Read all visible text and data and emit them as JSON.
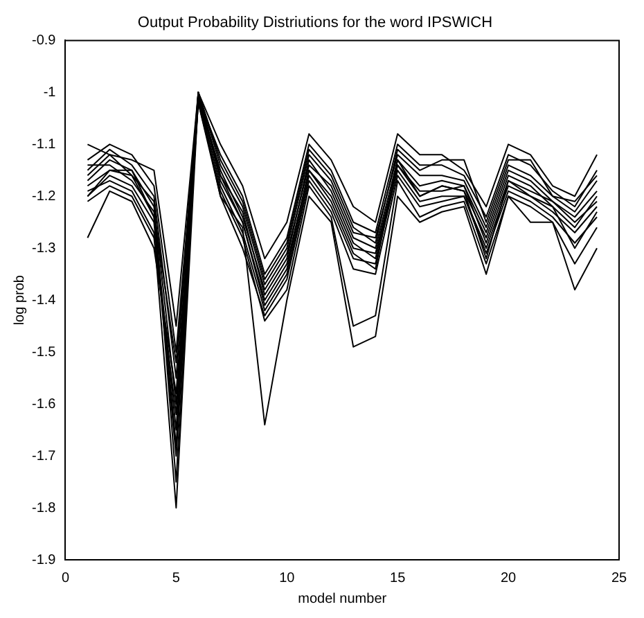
{
  "chart_data": {
    "type": "line",
    "title": "Output Probability Distriutions for the word IPSWICH",
    "xlabel": "model number",
    "ylabel": "log prob",
    "x": [
      1,
      2,
      3,
      4,
      5,
      6,
      7,
      8,
      9,
      10,
      11,
      12,
      13,
      14,
      15,
      16,
      17,
      18,
      19,
      20,
      21,
      22,
      23,
      24
    ],
    "xlim": [
      0,
      25
    ],
    "xticks": [
      0,
      5,
      10,
      15,
      20,
      25
    ],
    "ylim": [
      -1.9,
      -0.9
    ],
    "yticks": [
      -1.9,
      -1.8,
      -1.7,
      -1.6,
      -1.5,
      -1.4,
      -1.3,
      -1.2,
      -1.1,
      -1,
      -0.9
    ],
    "grid": false,
    "legend": false,
    "marker": "none",
    "line_style": "solid",
    "series": [
      {
        "color": "#000000",
        "values": [
          -1.1,
          -1.12,
          -1.13,
          -1.15,
          -1.45,
          -1.0,
          -1.1,
          -1.18,
          -1.32,
          -1.25,
          -1.08,
          -1.13,
          -1.22,
          -1.25,
          -1.08,
          -1.12,
          -1.12,
          -1.15,
          -1.22,
          -1.1,
          -1.12,
          -1.18,
          -1.2,
          -1.12
        ]
      },
      {
        "color": "#000000",
        "values": [
          -1.13,
          -1.1,
          -1.12,
          -1.18,
          -1.5,
          -1.01,
          -1.12,
          -1.2,
          -1.35,
          -1.28,
          -1.1,
          -1.15,
          -1.25,
          -1.27,
          -1.1,
          -1.14,
          -1.14,
          -1.16,
          -1.24,
          -1.12,
          -1.14,
          -1.19,
          -1.22,
          -1.15
        ]
      },
      {
        "color": "#000000",
        "values": [
          -1.15,
          -1.11,
          -1.14,
          -1.2,
          -1.55,
          -1.0,
          -1.14,
          -1.22,
          -1.37,
          -1.3,
          -1.12,
          -1.17,
          -1.27,
          -1.28,
          -1.12,
          -1.16,
          -1.16,
          -1.17,
          -1.26,
          -1.14,
          -1.16,
          -1.2,
          -1.23,
          -1.17
        ]
      },
      {
        "color": "#000000",
        "values": [
          -1.17,
          -1.13,
          -1.15,
          -1.22,
          -1.6,
          -1.01,
          -1.15,
          -1.24,
          -1.38,
          -1.31,
          -1.14,
          -1.18,
          -1.28,
          -1.3,
          -1.13,
          -1.18,
          -1.17,
          -1.18,
          -1.27,
          -1.15,
          -1.17,
          -1.21,
          -1.24,
          -1.19
        ]
      },
      {
        "color": "#000000",
        "values": [
          -1.18,
          -1.15,
          -1.16,
          -1.24,
          -1.65,
          -1.0,
          -1.17,
          -1.25,
          -1.4,
          -1.33,
          -1.15,
          -1.2,
          -1.3,
          -1.31,
          -1.14,
          -1.2,
          -1.18,
          -1.19,
          -1.28,
          -1.16,
          -1.18,
          -1.22,
          -1.26,
          -1.2
        ]
      },
      {
        "color": "#000000",
        "values": [
          -1.2,
          -1.16,
          -1.18,
          -1.25,
          -1.7,
          -1.01,
          -1.18,
          -1.27,
          -1.42,
          -1.35,
          -1.16,
          -1.22,
          -1.32,
          -1.33,
          -1.15,
          -1.21,
          -1.2,
          -1.2,
          -1.3,
          -1.18,
          -1.2,
          -1.23,
          -1.27,
          -1.22
        ]
      },
      {
        "color": "#000000",
        "values": [
          -1.16,
          -1.12,
          -1.16,
          -1.21,
          -1.75,
          -1.0,
          -1.16,
          -1.23,
          -1.39,
          -1.32,
          -1.13,
          -1.19,
          -1.29,
          -1.32,
          -1.14,
          -1.19,
          -1.19,
          -1.18,
          -1.29,
          -1.17,
          -1.19,
          -1.21,
          -1.25,
          -1.21
        ]
      },
      {
        "color": "#000000",
        "values": [
          -1.19,
          -1.17,
          -1.19,
          -1.27,
          -1.8,
          -1.01,
          -1.2,
          -1.3,
          -1.43,
          -1.36,
          -1.17,
          -1.23,
          -1.34,
          -1.35,
          -1.16,
          -1.22,
          -1.21,
          -1.2,
          -1.31,
          -1.19,
          -1.21,
          -1.24,
          -1.29,
          -1.24
        ]
      },
      {
        "color": "#000000",
        "values": [
          -1.21,
          -1.18,
          -1.2,
          -1.28,
          -1.62,
          -1.02,
          -1.19,
          -1.28,
          -1.44,
          -1.38,
          -1.18,
          -1.24,
          -1.45,
          -1.43,
          -1.17,
          -1.24,
          -1.22,
          -1.21,
          -1.33,
          -1.2,
          -1.22,
          -1.25,
          -1.33,
          -1.26
        ]
      },
      {
        "color": "#000000",
        "values": [
          -1.28,
          -1.19,
          -1.21,
          -1.3,
          -1.58,
          -1.02,
          -1.2,
          -1.26,
          -1.64,
          -1.4,
          -1.2,
          -1.25,
          -1.49,
          -1.47,
          -1.2,
          -1.25,
          -1.23,
          -1.22,
          -1.35,
          -1.2,
          -1.25,
          -1.25,
          -1.38,
          -1.3
        ]
      },
      {
        "color": "#000000",
        "values": [
          -1.14,
          -1.14,
          -1.17,
          -1.23,
          -1.52,
          -1.0,
          -1.13,
          -1.21,
          -1.36,
          -1.29,
          -1.11,
          -1.16,
          -1.26,
          -1.29,
          -1.11,
          -1.15,
          -1.13,
          -1.13,
          -1.25,
          -1.13,
          -1.13,
          -1.2,
          -1.21,
          -1.16
        ]
      },
      {
        "color": "#000000",
        "values": [
          -1.2,
          -1.15,
          -1.15,
          -1.24,
          -1.68,
          -1.01,
          -1.16,
          -1.25,
          -1.41,
          -1.34,
          -1.15,
          -1.21,
          -1.31,
          -1.34,
          -1.13,
          -1.2,
          -1.18,
          -1.19,
          -1.32,
          -1.17,
          -1.2,
          -1.22,
          -1.3,
          -1.23
        ]
      }
    ]
  }
}
